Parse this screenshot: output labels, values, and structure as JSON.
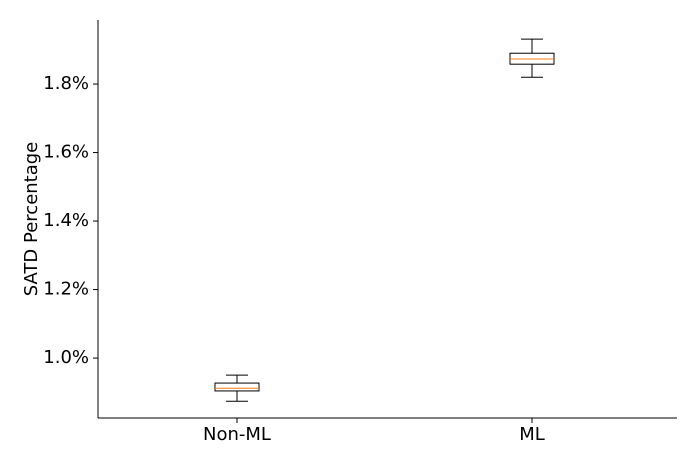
{
  "chart_data": {
    "type": "box",
    "y_label": "SATD Percentage",
    "categories": [
      "Non-ML",
      "ML"
    ],
    "boxes": [
      {
        "whislo": 0.874,
        "q1": 0.904,
        "med": 0.912,
        "q3": 0.927,
        "whishi": 0.95
      },
      {
        "whislo": 1.82,
        "q1": 1.858,
        "med": 1.873,
        "q3": 1.89,
        "whishi": 1.931
      }
    ],
    "box_color": "#000000",
    "median_color": "#ff7f0e",
    "ylim": [
      0.825,
      1.987
    ],
    "yticks": [
      {
        "value": 1.0,
        "label": "1.0%"
      },
      {
        "value": 1.2,
        "label": "1.2%"
      },
      {
        "value": 1.4,
        "label": "1.4%"
      },
      {
        "value": 1.6,
        "label": "1.6%"
      },
      {
        "value": 1.8,
        "label": "1.8%"
      }
    ],
    "grid": false
  }
}
